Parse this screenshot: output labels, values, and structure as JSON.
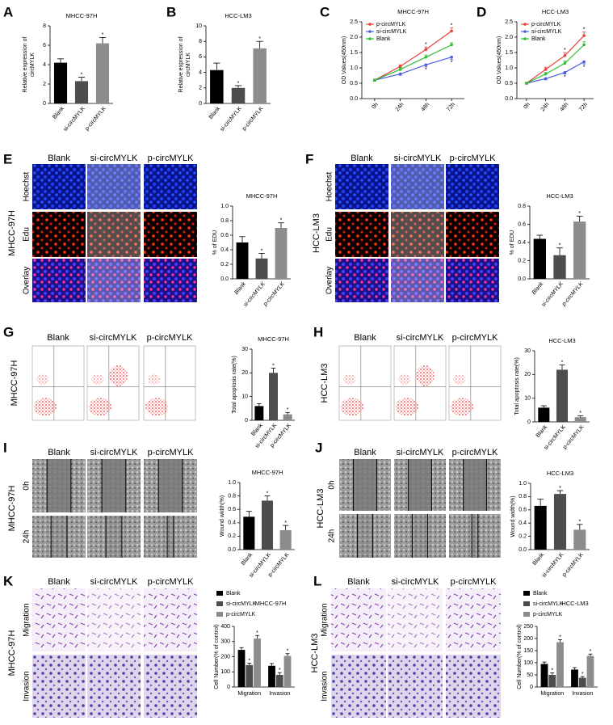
{
  "chart_data": [
    {
      "panel": "A",
      "type": "bar",
      "title": "MHCC-97H",
      "ylabel": [
        "Relative expression of",
        "circMYLK"
      ],
      "categories": [
        "Blank",
        "si-circMYLK",
        "p-circMYLK"
      ],
      "values": [
        4.2,
        2.3,
        6.2
      ],
      "errors": [
        0.4,
        0.4,
        0.6
      ],
      "significance": [
        null,
        "*",
        "*"
      ],
      "colors": [
        "#000000",
        "#4d4d4d",
        "#8c8c8c"
      ],
      "ylim": [
        0,
        8
      ],
      "yticks": [
        0,
        2,
        4,
        6,
        8
      ]
    },
    {
      "panel": "B",
      "type": "bar",
      "title": "HCC-LM3",
      "ylabel": [
        "Relative expression of",
        "circMYLK"
      ],
      "categories": [
        "Blank",
        "si-circMYLK",
        "p-circMYLK"
      ],
      "values": [
        4.3,
        2.0,
        7.1
      ],
      "errors": [
        0.9,
        0.3,
        0.9
      ],
      "significance": [
        null,
        "*",
        "*"
      ],
      "colors": [
        "#000000",
        "#4d4d4d",
        "#8c8c8c"
      ],
      "ylim": [
        0,
        10
      ],
      "yticks": [
        0,
        2,
        4,
        6,
        8,
        10
      ]
    },
    {
      "panel": "C",
      "type": "line",
      "title": "MHCC-97H",
      "ylabel": "OD Values(450nm)",
      "categories": [
        "0h",
        "24h",
        "48h",
        "72h"
      ],
      "series": [
        {
          "name": "p-circMYLK",
          "color": "#e8413c",
          "values": [
            0.6,
            1.05,
            1.6,
            2.2
          ],
          "errors": [
            0.03,
            0.05,
            0.08,
            0.1
          ],
          "significance": [
            null,
            null,
            "*",
            "*"
          ]
        },
        {
          "name": "si-circMYLK",
          "color": "#4a5de0",
          "values": [
            0.6,
            0.8,
            1.1,
            1.35
          ],
          "errors": [
            0.03,
            0.04,
            0.07,
            0.08
          ],
          "significance": [
            null,
            null,
            "*",
            "*"
          ]
        },
        {
          "name": "Blank",
          "color": "#2fbf2f",
          "values": [
            0.6,
            0.95,
            1.35,
            1.75
          ],
          "errors": [
            0.03,
            0.05,
            0.07,
            0.07
          ]
        }
      ],
      "legend": "upper left",
      "ylim": [
        0,
        2.5
      ],
      "yticks": [
        {
          "value": 0,
          "label": "0.0"
        },
        0.5,
        {
          "value": 1,
          "label": "1.0"
        },
        1.5,
        {
          "value": 2,
          "label": "2.0"
        },
        2.5
      ]
    },
    {
      "panel": "D",
      "type": "line",
      "title": "HCC-LM3",
      "ylabel": "OD Values(450nm)",
      "categories": [
        "0h",
        "24h",
        "48h",
        "72h"
      ],
      "series": [
        {
          "name": "p-circMYLK",
          "color": "#e8413c",
          "values": [
            0.5,
            0.95,
            1.4,
            2.05
          ],
          "errors": [
            0.03,
            0.07,
            0.1,
            0.12
          ],
          "significance": [
            null,
            null,
            "*",
            "*"
          ]
        },
        {
          "name": "si-circMYLK",
          "color": "#4a5de0",
          "values": [
            0.5,
            0.65,
            0.85,
            1.2
          ],
          "errors": [
            0.03,
            0.04,
            0.05,
            0.07
          ],
          "significance": [
            null,
            null,
            "*",
            "*"
          ]
        },
        {
          "name": "Blank",
          "color": "#2fbf2f",
          "values": [
            0.5,
            0.8,
            1.15,
            1.75
          ],
          "errors": [
            0.03,
            0.05,
            0.08,
            0.1
          ]
        }
      ],
      "legend": "upper left",
      "ylim": [
        0,
        2.5
      ],
      "yticks": [
        {
          "value": 0,
          "label": "0.0"
        },
        0.5,
        {
          "value": 1,
          "label": "1.0"
        },
        1.5,
        {
          "value": 2,
          "label": "2.0"
        },
        2.5
      ]
    },
    {
      "type": "bar",
      "title": "MHCC-97H",
      "ylabel": "% of EDU",
      "category_style": "italic",
      "categories": [
        "Blank",
        "si-circMYLK",
        "p-circMYLK"
      ],
      "values": [
        0.5,
        0.28,
        0.7
      ],
      "errors": [
        0.08,
        0.07,
        0.07
      ],
      "significance": [
        null,
        "*",
        "*"
      ],
      "colors": [
        "#000000",
        "#4d4d4d",
        "#8c8c8c"
      ],
      "ylim": [
        0,
        1
      ],
      "yticks": [
        {
          "value": 0,
          "label": "0.0"
        },
        0.2,
        0.4,
        0.6,
        0.8,
        {
          "value": 1,
          "label": "1.0"
        }
      ]
    },
    {
      "type": "bar",
      "title": "HCC-LM3",
      "ylabel": "% of EDU",
      "category_style": "italic",
      "categories": [
        "Blank",
        "si-circMYLK",
        "p-circMYLK"
      ],
      "values": [
        0.44,
        0.26,
        0.63
      ],
      "errors": [
        0.04,
        0.08,
        0.06
      ],
      "significance": [
        null,
        "*",
        "*"
      ],
      "colors": [
        "#000000",
        "#4d4d4d",
        "#8c8c8c"
      ],
      "ylim": [
        0,
        0.8
      ],
      "yticks": [
        {
          "value": 0,
          "label": "0.0"
        },
        0.2,
        0.4,
        0.6,
        0.8
      ]
    },
    {
      "type": "bar",
      "title": "MHCC-97H",
      "ylabel": "Total apoptosis rate(%)",
      "categories": [
        "Blank",
        "si-circMYLK",
        "p-circMYLK"
      ],
      "values": [
        6,
        20,
        2.5
      ],
      "errors": [
        1,
        2,
        0.8
      ],
      "significance": [
        null,
        "*",
        "*"
      ],
      "colors": [
        "#000000",
        "#4d4d4d",
        "#8c8c8c"
      ],
      "ylim": [
        0,
        30
      ],
      "yticks": [
        0,
        10,
        20,
        30
      ]
    },
    {
      "type": "bar",
      "title": "HCC-LM3",
      "ylabel": "Total apoptosis rate(%)",
      "categories": [
        "Blank",
        "si-circMYLK",
        "p-circMYLK"
      ],
      "values": [
        6,
        22,
        2
      ],
      "errors": [
        0.8,
        2,
        0.6
      ],
      "significance": [
        null,
        "*",
        "*"
      ],
      "colors": [
        "#000000",
        "#4d4d4d",
        "#8c8c8c"
      ],
      "ylim": [
        0,
        30
      ],
      "yticks": [
        0,
        10,
        20,
        30
      ]
    },
    {
      "type": "bar",
      "title": "MHCC-97H",
      "ylabel": "Wound width(%)",
      "categories": [
        "Blank",
        "si-circMYLK",
        "p-circMYLK"
      ],
      "values": [
        0.49,
        0.73,
        0.29
      ],
      "errors": [
        0.08,
        0.07,
        0.07
      ],
      "significance": [
        null,
        "*",
        "*"
      ],
      "colors": [
        "#000000",
        "#4d4d4d",
        "#8c8c8c"
      ],
      "ylim": [
        0,
        1
      ],
      "yticks": [
        {
          "value": 0,
          "label": "0.0"
        },
        0.2,
        0.4,
        0.6,
        0.8,
        {
          "value": 1,
          "label": "1.0"
        }
      ]
    },
    {
      "type": "bar",
      "title": "HCC-LM3",
      "ylabel": "Wound width(%)",
      "categories": [
        "Blank",
        "si-circMYLK",
        "p-circMYLK"
      ],
      "values": [
        0.66,
        0.84,
        0.3
      ],
      "errors": [
        0.1,
        0.05,
        0.08
      ],
      "significance": [
        null,
        "*",
        "*"
      ],
      "colors": [
        "#000000",
        "#4d4d4d",
        "#8c8c8c"
      ],
      "ylim": [
        0,
        1
      ],
      "yticks": [
        {
          "value": 0,
          "label": "0.0"
        },
        0.2,
        0.4,
        0.6,
        0.8,
        {
          "value": 1,
          "label": "1.0"
        }
      ]
    },
    {
      "type": "grouped_bar",
      "title": "MHCC-97H",
      "ylabel": "Cell Number(% of control)",
      "categories": [
        "Migration",
        "Invasion"
      ],
      "series": [
        {
          "name": "Blank",
          "color": "#000000",
          "values": [
            245,
            140
          ],
          "errors": [
            15,
            15
          ]
        },
        {
          "name": "si-circMYLK",
          "color": "#4d4d4d",
          "values": [
            145,
            80
          ],
          "errors": [
            12,
            15
          ],
          "significance": [
            "*",
            "*"
          ]
        },
        {
          "name": "p-circMYLK",
          "color": "#8c8c8c",
          "values": [
            320,
            205
          ],
          "errors": [
            20,
            15
          ],
          "significance": [
            "*",
            "*"
          ]
        }
      ],
      "legend": "upper left",
      "ylim": [
        0,
        400
      ],
      "yticks": [
        0,
        100,
        200,
        300,
        400
      ]
    },
    {
      "type": "grouped_bar",
      "title": "HCC-LM3",
      "ylabel": "Cell Number(% of control)",
      "categories": [
        "Migration",
        "Invasion"
      ],
      "series": [
        {
          "name": "Blank",
          "color": "#000000",
          "values": [
            95,
            72
          ],
          "errors": [
            8,
            8
          ]
        },
        {
          "name": "si-circMYLK",
          "color": "#4d4d4d",
          "values": [
            50,
            38
          ],
          "errors": [
            8,
            5
          ],
          "significance": [
            "*",
            "*"
          ]
        },
        {
          "name": "p-circMYLK",
          "color": "#8c8c8c",
          "values": [
            185,
            128
          ],
          "errors": [
            10,
            8
          ],
          "significance": [
            "*",
            "*"
          ]
        }
      ],
      "legend": "upper left",
      "ylim": [
        0,
        250
      ],
      "yticks": [
        0,
        50,
        100,
        150,
        200,
        250
      ]
    }
  ],
  "image_panels": [
    {
      "panel": "E",
      "cell_line": "MHCC-97H",
      "columns": [
        "Blank",
        "si-circMYLK",
        "p-circMYLK"
      ],
      "rows": [
        "Hoechst",
        "Edu",
        "Overlay"
      ]
    },
    {
      "panel": "F",
      "cell_line": "HCC-LM3",
      "columns": [
        "Blank",
        "si-circMYLK",
        "p-circMYLK"
      ],
      "rows": [
        "Hoechst",
        "Edu",
        "Overlay"
      ]
    },
    {
      "panel": "G",
      "cell_line": "MHCC-97H",
      "columns": [
        "Blank",
        "si-circMYLK",
        "p-circMYLK"
      ]
    },
    {
      "panel": "H",
      "cell_line": "HCC-LM3",
      "columns": [
        "Blank",
        "si-circMYLK",
        "p-circMYLK"
      ]
    },
    {
      "panel": "I",
      "cell_line": "MHCC-97H",
      "columns": [
        "Blank",
        "si-circMYLK",
        "p-circMYLK"
      ],
      "rows": [
        "0h",
        "24h"
      ]
    },
    {
      "panel": "J",
      "cell_line": "HCC-LM3",
      "columns": [
        "Blank",
        "si-circMYLK",
        "p-circMYLK"
      ],
      "rows": [
        "0h",
        "24h"
      ]
    },
    {
      "panel": "K",
      "cell_line": "MHCC-97H",
      "columns": [
        "Blank",
        "si-circMYLK",
        "p-circMYLK"
      ],
      "rows": [
        "Migration",
        "Invasion"
      ]
    },
    {
      "panel": "L",
      "cell_line": "HCC-LM3",
      "columns": [
        "Blank",
        "si-circMYLK",
        "p-circMYLK"
      ],
      "rows": [
        "Migration",
        "Invasion"
      ]
    }
  ]
}
